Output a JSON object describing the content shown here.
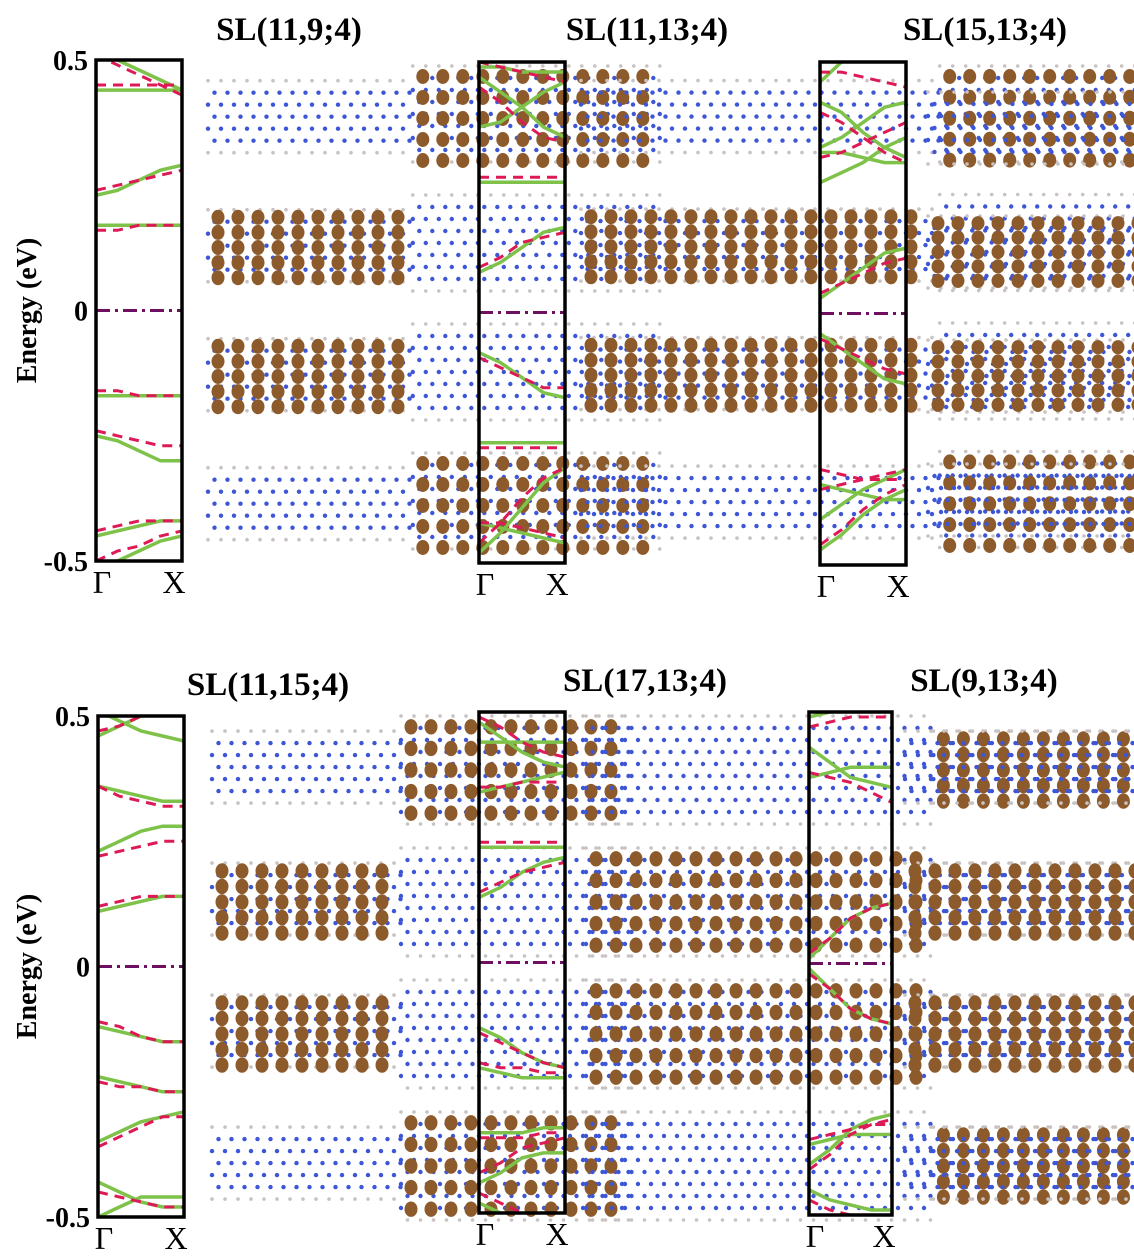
{
  "figure": {
    "ylabel": "Energy (eV)",
    "xticks": [
      "Γ",
      "X"
    ],
    "colors": {
      "solid_band": "#7ec24a",
      "dashed_band": "#dd1a55",
      "fermi_level": "#6e0f5f",
      "wavefunction": "#8c5a2b",
      "atom": "#3d56d6"
    }
  },
  "chart_data": [
    {
      "type": "line",
      "title": "SL(11,9;4)",
      "ylabel": "Energy (eV)",
      "xticks": [
        "Γ",
        "X"
      ],
      "yticks": [
        "0.5",
        "0",
        "-0.5"
      ],
      "ylim": [
        -0.5,
        0.5
      ],
      "x": [
        0,
        0.25,
        0.5,
        0.75,
        1
      ],
      "series": [
        {
          "style": "solid",
          "bands": [
            [
              0.52,
              0.5,
              0.48,
              0.46,
              0.44
            ],
            [
              0.44,
              0.44,
              0.44,
              0.44,
              0.44
            ],
            [
              0.23,
              0.24,
              0.26,
              0.28,
              0.29
            ],
            [
              0.17,
              0.17,
              0.17,
              0.17,
              0.17
            ],
            [
              -0.17,
              -0.17,
              -0.17,
              -0.17,
              -0.17
            ],
            [
              -0.25,
              -0.26,
              -0.28,
              -0.3,
              -0.3
            ],
            [
              -0.45,
              -0.44,
              -0.43,
              -0.42,
              -0.42
            ],
            [
              -0.52,
              -0.5,
              -0.48,
              -0.46,
              -0.45
            ]
          ]
        },
        {
          "style": "dashed",
          "bands": [
            [
              0.51,
              0.49,
              0.47,
              0.45,
              0.43
            ],
            [
              0.45,
              0.45,
              0.45,
              0.45,
              0.45
            ],
            [
              0.24,
              0.25,
              0.26,
              0.27,
              0.28
            ],
            [
              0.16,
              0.16,
              0.17,
              0.17,
              0.17
            ],
            [
              -0.16,
              -0.16,
              -0.17,
              -0.17,
              -0.17
            ],
            [
              -0.24,
              -0.25,
              -0.26,
              -0.27,
              -0.27
            ],
            [
              -0.44,
              -0.43,
              -0.42,
              -0.42,
              -0.42
            ],
            [
              -0.5,
              -0.48,
              -0.47,
              -0.45,
              -0.44
            ]
          ]
        }
      ]
    },
    {
      "type": "line",
      "title": "SL(11,13;4)",
      "ylabel": "",
      "xticks": [
        "Γ",
        "X"
      ],
      "yticks": [],
      "ylim": [
        -0.5,
        0.5
      ],
      "x": [
        0,
        0.25,
        0.5,
        0.75,
        1
      ],
      "series": [
        {
          "style": "solid",
          "bands": [
            [
              0.49,
              0.49,
              0.48,
              0.48,
              0.48
            ],
            [
              0.47,
              0.44,
              0.41,
              0.37,
              0.35
            ],
            [
              0.37,
              0.38,
              0.41,
              0.44,
              0.46
            ],
            [
              0.26,
              0.26,
              0.26,
              0.26,
              0.26
            ],
            [
              0.08,
              0.1,
              0.13,
              0.16,
              0.17
            ],
            [
              -0.08,
              -0.1,
              -0.13,
              -0.16,
              -0.17
            ],
            [
              -0.26,
              -0.26,
              -0.26,
              -0.26,
              -0.26
            ],
            [
              -0.42,
              -0.43,
              -0.44,
              -0.45,
              -0.46
            ],
            [
              -0.48,
              -0.44,
              -0.39,
              -0.34,
              -0.31
            ]
          ]
        },
        {
          "style": "dashed",
          "bands": [
            [
              0.5,
              0.49,
              0.48,
              0.47,
              0.46
            ],
            [
              0.45,
              0.42,
              0.38,
              0.35,
              0.34
            ],
            [
              0.27,
              0.27,
              0.27,
              0.27,
              0.27
            ],
            [
              0.09,
              0.11,
              0.14,
              0.15,
              0.16
            ],
            [
              -0.09,
              -0.11,
              -0.13,
              -0.15,
              -0.15
            ],
            [
              -0.27,
              -0.27,
              -0.27,
              -0.27,
              -0.27
            ],
            [
              -0.42,
              -0.42,
              -0.43,
              -0.44,
              -0.45
            ],
            [
              -0.46,
              -0.42,
              -0.37,
              -0.33,
              -0.31
            ]
          ]
        }
      ]
    },
    {
      "type": "line",
      "title": "SL(15,13;4)",
      "ylabel": "",
      "xticks": [
        "Γ",
        "X"
      ],
      "yticks": [],
      "ylim": [
        -0.5,
        0.5
      ],
      "x": [
        0,
        0.25,
        0.5,
        0.75,
        1
      ],
      "series": [
        {
          "style": "solid",
          "bands": [
            [
              0.46,
              0.5,
              0.52,
              0.52,
              0.52
            ],
            [
              0.42,
              0.4,
              0.36,
              0.33,
              0.31
            ],
            [
              0.33,
              0.35,
              0.38,
              0.41,
              0.42
            ],
            [
              0.32,
              0.32,
              0.31,
              0.3,
              0.3
            ],
            [
              0.26,
              0.28,
              0.3,
              0.33,
              0.35
            ],
            [
              0.03,
              0.06,
              0.09,
              0.12,
              0.13
            ],
            [
              -0.04,
              -0.07,
              -0.1,
              -0.13,
              -0.14
            ],
            [
              -0.34,
              -0.35,
              -0.36,
              -0.37,
              -0.37
            ],
            [
              -0.41,
              -0.38,
              -0.35,
              -0.33,
              -0.31
            ],
            [
              -0.47,
              -0.44,
              -0.4,
              -0.37,
              -0.35
            ]
          ]
        },
        {
          "style": "dashed",
          "bands": [
            [
              0.48,
              0.48,
              0.47,
              0.46,
              0.45
            ],
            [
              0.4,
              0.38,
              0.35,
              0.32,
              0.3
            ],
            [
              0.31,
              0.32,
              0.34,
              0.36,
              0.38
            ],
            [
              0.04,
              0.06,
              0.08,
              0.1,
              0.11
            ],
            [
              -0.05,
              -0.07,
              -0.09,
              -0.11,
              -0.12
            ],
            [
              -0.31,
              -0.32,
              -0.33,
              -0.33,
              -0.33
            ],
            [
              -0.35,
              -0.34,
              -0.33,
              -0.32,
              -0.31
            ],
            [
              -0.46,
              -0.43,
              -0.39,
              -0.36,
              -0.34
            ]
          ]
        }
      ]
    },
    {
      "type": "line",
      "title": "SL(11,15;4)",
      "ylabel": "Energy (eV)",
      "xticks": [
        "Γ",
        "X"
      ],
      "yticks": [
        "0.5",
        "0",
        "-0.5"
      ],
      "ylim": [
        -0.5,
        0.5
      ],
      "x": [
        0,
        0.25,
        0.5,
        0.75,
        1
      ],
      "series": [
        {
          "style": "solid",
          "bands": [
            [
              0.46,
              0.48,
              0.5,
              0.51,
              0.51
            ],
            [
              0.51,
              0.49,
              0.47,
              0.46,
              0.45
            ],
            [
              0.36,
              0.35,
              0.34,
              0.33,
              0.33
            ],
            [
              0.23,
              0.25,
              0.27,
              0.28,
              0.28
            ],
            [
              0.11,
              0.12,
              0.13,
              0.14,
              0.14
            ],
            [
              -0.12,
              -0.13,
              -0.14,
              -0.15,
              -0.15
            ],
            [
              -0.22,
              -0.23,
              -0.24,
              -0.25,
              -0.25
            ],
            [
              -0.35,
              -0.33,
              -0.31,
              -0.3,
              -0.29
            ],
            [
              -0.43,
              -0.45,
              -0.47,
              -0.48,
              -0.48
            ],
            [
              -0.5,
              -0.48,
              -0.46,
              -0.46,
              -0.46
            ]
          ]
        },
        {
          "style": "dashed",
          "bands": [
            [
              0.47,
              0.48,
              0.5,
              0.51,
              0.51
            ],
            [
              0.36,
              0.34,
              0.33,
              0.32,
              0.32
            ],
            [
              0.22,
              0.23,
              0.24,
              0.25,
              0.25
            ],
            [
              0.12,
              0.13,
              0.14,
              0.14,
              0.14
            ],
            [
              -0.11,
              -0.12,
              -0.14,
              -0.15,
              -0.15
            ],
            [
              -0.23,
              -0.24,
              -0.24,
              -0.25,
              -0.25
            ],
            [
              -0.36,
              -0.34,
              -0.32,
              -0.3,
              -0.3
            ],
            [
              -0.45,
              -0.46,
              -0.47,
              -0.48,
              -0.48
            ]
          ]
        }
      ]
    },
    {
      "type": "line",
      "title": "SL(17,13;4)",
      "ylabel": "",
      "xticks": [
        "Γ",
        "X"
      ],
      "yticks": [],
      "ylim": [
        -0.5,
        0.5
      ],
      "x": [
        0,
        0.25,
        0.5,
        0.75,
        1
      ],
      "series": [
        {
          "style": "solid",
          "bands": [
            [
              0.5,
              0.51,
              0.51,
              0.51,
              0.51
            ],
            [
              0.48,
              0.45,
              0.42,
              0.4,
              0.39
            ],
            [
              0.44,
              0.44,
              0.44,
              0.44,
              0.44
            ],
            [
              0.34,
              0.35,
              0.36,
              0.37,
              0.38
            ],
            [
              0.23,
              0.23,
              0.23,
              0.23,
              0.23
            ],
            [
              0.13,
              0.15,
              0.18,
              0.2,
              0.21
            ],
            [
              -0.13,
              -0.15,
              -0.18,
              -0.2,
              -0.21
            ],
            [
              -0.21,
              -0.22,
              -0.23,
              -0.23,
              -0.23
            ],
            [
              -0.34,
              -0.34,
              -0.34,
              -0.33,
              -0.33
            ],
            [
              -0.44,
              -0.42,
              -0.39,
              -0.38,
              -0.38
            ],
            [
              -0.48,
              -0.5,
              -0.52,
              -0.52,
              -0.52
            ]
          ]
        },
        {
          "style": "dashed",
          "bands": [
            [
              0.49,
              0.47,
              0.44,
              0.42,
              0.41
            ],
            [
              0.35,
              0.35,
              0.36,
              0.36,
              0.36
            ],
            [
              0.24,
              0.24,
              0.24,
              0.24,
              0.24
            ],
            [
              0.14,
              0.16,
              0.18,
              0.19,
              0.2
            ],
            [
              -0.14,
              -0.16,
              -0.18,
              -0.2,
              -0.21
            ],
            [
              -0.2,
              -0.21,
              -0.21,
              -0.22,
              -0.22
            ],
            [
              -0.35,
              -0.35,
              -0.35,
              -0.34,
              -0.34
            ],
            [
              -0.42,
              -0.4,
              -0.37,
              -0.36,
              -0.35
            ],
            [
              -0.46,
              -0.48,
              -0.5,
              -0.51,
              -0.51
            ]
          ]
        }
      ]
    },
    {
      "type": "line",
      "title": "SL(9,13;4)",
      "ylabel": "",
      "xticks": [
        "Γ",
        "X"
      ],
      "yticks": [],
      "ylim": [
        -0.5,
        0.5
      ],
      "x": [
        0,
        0.25,
        0.5,
        0.75,
        1
      ],
      "series": [
        {
          "style": "solid",
          "bands": [
            [
              0.49,
              0.5,
              0.51,
              0.51,
              0.51
            ],
            [
              0.43,
              0.4,
              0.37,
              0.36,
              0.35
            ],
            [
              0.37,
              0.38,
              0.39,
              0.39,
              0.39
            ],
            [
              0.01,
              0.05,
              0.09,
              0.11,
              0.12
            ],
            [
              -0.01,
              -0.05,
              -0.09,
              -0.11,
              -0.12
            ],
            [
              -0.36,
              -0.35,
              -0.34,
              -0.34,
              -0.34
            ],
            [
              -0.4,
              -0.37,
              -0.33,
              -0.31,
              -0.3
            ],
            [
              -0.45,
              -0.47,
              -0.48,
              -0.49,
              -0.49
            ]
          ]
        },
        {
          "style": "dashed",
          "bands": [
            [
              0.47,
              0.48,
              0.49,
              0.49,
              0.49
            ],
            [
              0.38,
              0.37,
              0.36,
              0.34,
              0.32
            ],
            [
              0.02,
              0.05,
              0.09,
              0.11,
              0.12
            ],
            [
              -0.02,
              -0.05,
              -0.09,
              -0.11,
              -0.12
            ],
            [
              -0.35,
              -0.34,
              -0.33,
              -0.32,
              -0.32
            ],
            [
              -0.41,
              -0.38,
              -0.34,
              -0.32,
              -0.31
            ],
            [
              -0.47,
              -0.49,
              -0.5,
              -0.51,
              -0.51
            ]
          ]
        }
      ]
    }
  ]
}
